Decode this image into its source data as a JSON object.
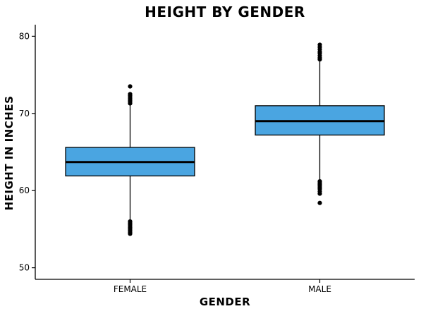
{
  "chart_data": {
    "type": "boxplot",
    "title": "HEIGHT BY GENDER",
    "xlabel": "GENDER",
    "ylabel": "HEIGHT IN INCHES",
    "categories": [
      "FEMALE",
      "MALE"
    ],
    "ylim": [
      48.5,
      81.5
    ],
    "yticks": [
      50,
      60,
      70,
      80
    ],
    "grid": false,
    "legend": "none",
    "box_color": "#4aa5e1",
    "edge_color": "#000000",
    "boxes": [
      {
        "category": "FEMALE",
        "whisker_low": 56.2,
        "q1": 61.9,
        "median": 63.7,
        "q3": 65.6,
        "whisker_high": 71.2,
        "outliers": [
          54.4,
          54.6,
          54.8,
          55.0,
          55.2,
          55.4,
          55.6,
          55.8,
          56.0,
          71.3,
          71.5,
          71.7,
          71.9,
          72.1,
          72.3,
          72.5,
          73.5
        ]
      },
      {
        "category": "MALE",
        "whisker_low": 61.3,
        "q1": 67.2,
        "median": 69.0,
        "q3": 71.0,
        "whisker_high": 76.9,
        "outliers": [
          58.4,
          59.6,
          59.9,
          60.2,
          60.4,
          60.6,
          60.8,
          61.0,
          61.2,
          77.0,
          77.2,
          77.5,
          77.8,
          78.0,
          78.3,
          78.6,
          78.9
        ]
      }
    ]
  }
}
